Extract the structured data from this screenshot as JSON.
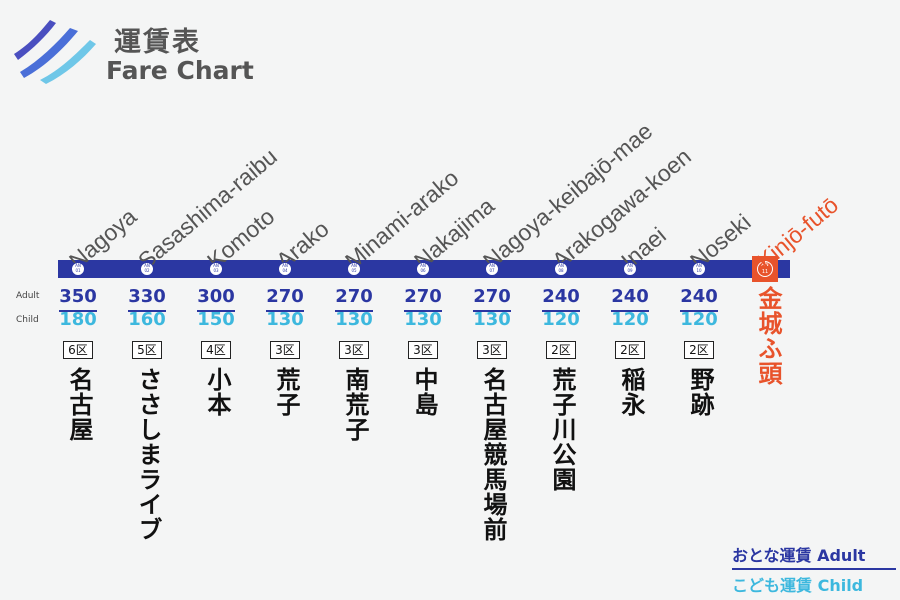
{
  "header": {
    "title_ja": "運賃表",
    "title_en": "Fare Chart",
    "logo_icon": "wave-stripes-logo"
  },
  "row_labels": {
    "adult": "Adult",
    "child": "Child"
  },
  "stations": [
    {
      "en": "Nagoya",
      "ja": "名古屋",
      "code": "AN 01",
      "adult": "350",
      "child": "180",
      "zone": "6区"
    },
    {
      "en": "Sasashima-raibu",
      "ja": "ささしまライブ",
      "code": "AN 02",
      "adult": "330",
      "child": "160",
      "zone": "5区"
    },
    {
      "en": "Komoto",
      "ja": "小本",
      "code": "AN 03",
      "adult": "300",
      "child": "150",
      "zone": "4区"
    },
    {
      "en": "Arako",
      "ja": "荒子",
      "code": "AN 04",
      "adult": "270",
      "child": "130",
      "zone": "3区"
    },
    {
      "en": "Minami-arako",
      "ja": "南荒子",
      "code": "AN 05",
      "adult": "270",
      "child": "130",
      "zone": "3区"
    },
    {
      "en": "Nakajima",
      "ja": "中島",
      "code": "AN 06",
      "adult": "270",
      "child": "130",
      "zone": "3区"
    },
    {
      "en": "Nagoya-keibajō-mae",
      "ja": "名古屋競馬場前",
      "code": "AN 07",
      "adult": "270",
      "child": "130",
      "zone": "3区"
    },
    {
      "en": "Arakogawa-koen",
      "ja": "荒子川公園",
      "code": "AN 08",
      "adult": "240",
      "child": "120",
      "zone": "2区"
    },
    {
      "en": "Inaei",
      "ja": "稲永",
      "code": "AN 09",
      "adult": "240",
      "child": "120",
      "zone": "2区"
    },
    {
      "en": "Noseki",
      "ja": "野跡",
      "code": "AN 10",
      "adult": "240",
      "child": "120",
      "zone": "2区"
    }
  ],
  "destination": {
    "en": "Kinjō-futō",
    "ja": "金城ふ頭",
    "code": "AN 11"
  },
  "legend": {
    "adult": "おとな運賃 Adult",
    "child": "こども運賃 Child"
  },
  "colors": {
    "line": "#2b37a2",
    "adult": "#2b37a2",
    "child": "#3db8de",
    "destination": "#e8532b",
    "text": "#555555"
  }
}
